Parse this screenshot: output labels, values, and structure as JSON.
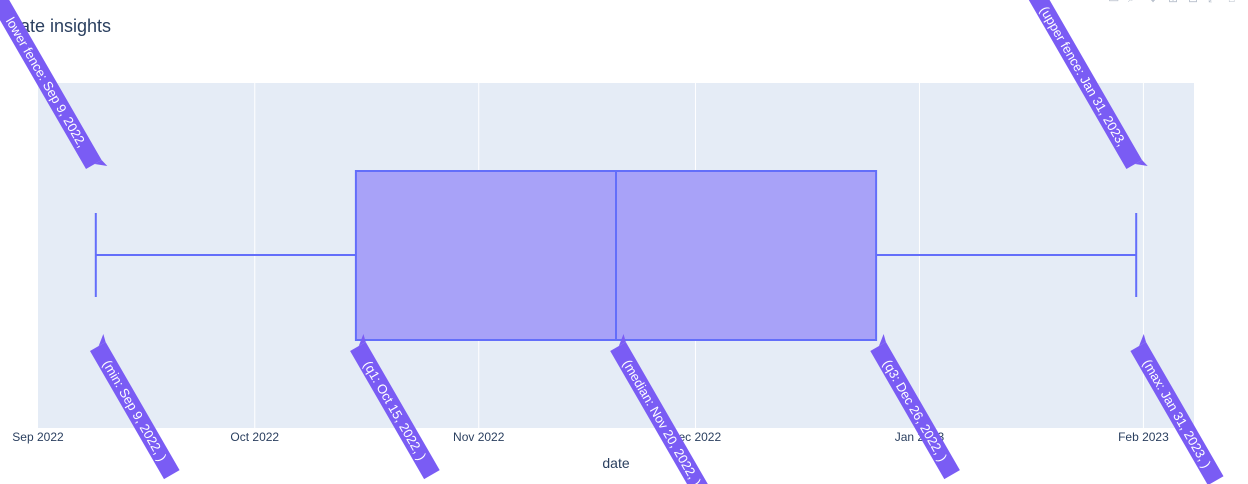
{
  "chart_data": {
    "type": "box",
    "title": "ate insights",
    "xlabel": "date",
    "ylabel": "",
    "x_ticks": [
      "Sep 2022",
      "Oct 2022",
      "Nov 2022",
      "Dec 2022",
      "Jan 2023",
      "Feb 2023"
    ],
    "x_tick_dates": [
      "2022-09-01",
      "2022-10-01",
      "2022-11-01",
      "2022-12-01",
      "2023-01-01",
      "2023-02-01"
    ],
    "xlim": [
      "2022-09-01",
      "2023-02-08"
    ],
    "grid": true,
    "box": {
      "min": "2022-09-09",
      "lower_fence": "2022-09-09",
      "q1": "2022-10-15",
      "median": "2022-11-20",
      "q3": "2022-12-26",
      "upper_fence": "2023-01-31",
      "max": "2023-01-31"
    },
    "annotations": [
      {
        "text": "lower fence: Sep 9, 2022, ",
        "date": "2022-09-09",
        "side": "top"
      },
      {
        "text": "(upper fence: Jan 31, 2023, ",
        "date": "2023-01-31",
        "side": "top"
      },
      {
        "text": "(min: Sep 9, 2022, )",
        "date": "2022-09-09",
        "side": "bottom"
      },
      {
        "text": "(q1: Oct 15, 2022, )",
        "date": "2022-10-15",
        "side": "bottom"
      },
      {
        "text": "(median: Nov 20, 2022, )",
        "date": "2022-11-20",
        "side": "bottom"
      },
      {
        "text": "(q3: Dec 26, 2022, )",
        "date": "2022-12-26",
        "side": "bottom"
      },
      {
        "text": "(max: Jan 31, 2023, )",
        "date": "2023-01-31",
        "side": "bottom"
      }
    ],
    "colors": {
      "box_fill": "#a8a2f8",
      "box_line": "#636efa",
      "plot_bg": "#e5ecf6",
      "grid": "#ffffff",
      "annotation_bg": "#7a5cf4",
      "annotation_text": "#ffffff"
    }
  }
}
